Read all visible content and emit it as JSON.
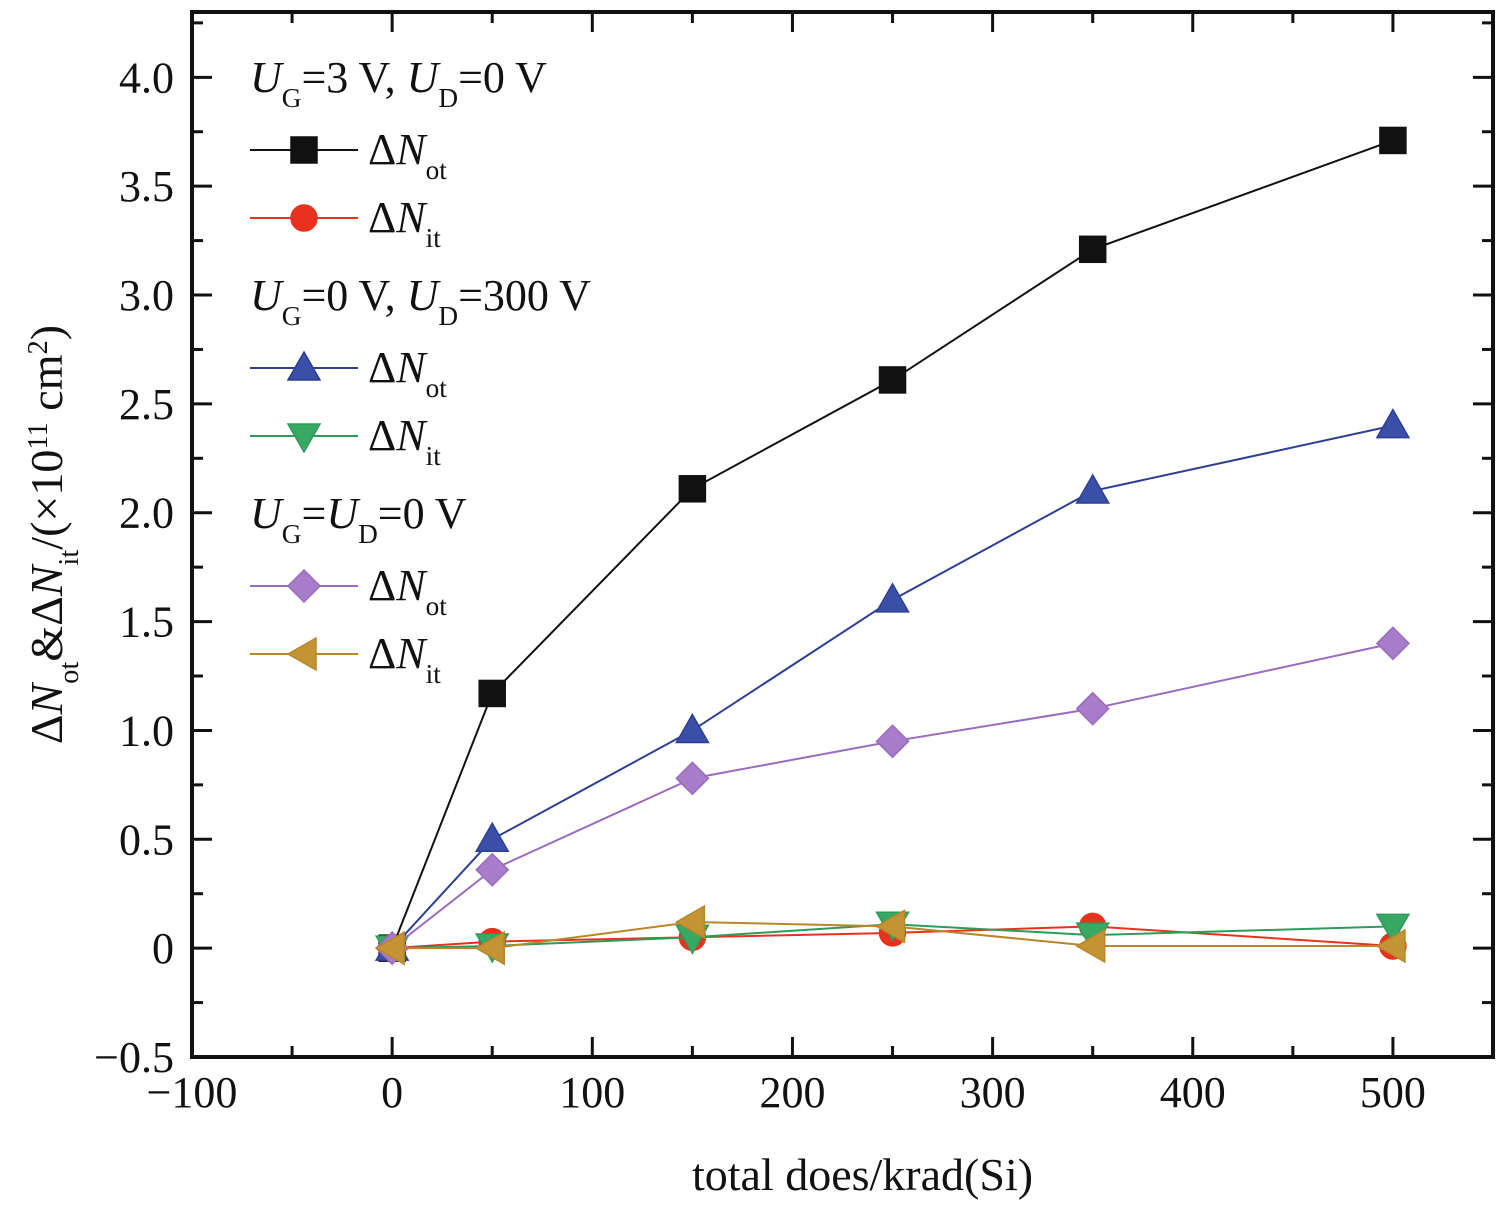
{
  "chart_data": {
    "type": "line",
    "xlabel": "total does/krad(Si)",
    "ylabel": {
      "parts": [
        {
          "t": "Δ",
          "style": "normal"
        },
        {
          "t": "N",
          "style": "italic"
        },
        {
          "t": "ot",
          "style": "sub"
        },
        {
          "t": "&Δ",
          "style": "normal"
        },
        {
          "t": "N",
          "style": "italic"
        },
        {
          "t": "it",
          "style": "sub"
        },
        {
          "t": "/(×10",
          "style": "normal"
        },
        {
          "t": "11",
          "style": "sup"
        },
        {
          "t": " cm",
          "style": "normal"
        },
        {
          "t": "2",
          "style": "sup"
        },
        {
          "t": ")",
          "style": "normal"
        }
      ]
    },
    "xlim": [
      -100,
      550
    ],
    "ylim": [
      -0.5,
      4.3
    ],
    "xticks": [
      -100,
      0,
      100,
      200,
      300,
      400,
      500
    ],
    "xtick_labels": [
      "−100",
      "0",
      "100",
      "200",
      "300",
      "400",
      "500"
    ],
    "yticks": [
      -0.5,
      0,
      0.5,
      1.0,
      1.5,
      2.0,
      2.5,
      3.0,
      3.5,
      4.0
    ],
    "ytick_labels": [
      "−0.5",
      "0",
      "0.5",
      "1.0",
      "1.5",
      "2.0",
      "2.5",
      "3.0",
      "3.5",
      "4.0"
    ],
    "legend_position": "top-left",
    "legend_groups": [
      {
        "parts": [
          {
            "t": "U",
            "style": "italic"
          },
          {
            "t": "G",
            "style": "sub"
          },
          {
            "t": "=3 V, ",
            "style": "normal"
          },
          {
            "t": "U",
            "style": "italic"
          },
          {
            "t": "D",
            "style": "sub"
          },
          {
            "t": "=0 V",
            "style": "normal"
          }
        ],
        "series_indices": [
          0,
          1
        ]
      },
      {
        "parts": [
          {
            "t": "U",
            "style": "italic"
          },
          {
            "t": "G",
            "style": "sub"
          },
          {
            "t": "=0 V, ",
            "style": "normal"
          },
          {
            "t": "U",
            "style": "italic"
          },
          {
            "t": "D",
            "style": "sub"
          },
          {
            "t": "=300 V",
            "style": "normal"
          }
        ],
        "series_indices": [
          2,
          3
        ]
      },
      {
        "parts": [
          {
            "t": "U",
            "style": "italic"
          },
          {
            "t": "G",
            "style": "sub"
          },
          {
            "t": "=",
            "style": "normal"
          },
          {
            "t": "U",
            "style": "italic"
          },
          {
            "t": "D",
            "style": "sub"
          },
          {
            "t": "=0 V",
            "style": "normal"
          }
        ],
        "series_indices": [
          4,
          5
        ]
      }
    ],
    "series": [
      {
        "name": "ΔNot",
        "label_parts": [
          {
            "t": "Δ",
            "style": "normal"
          },
          {
            "t": "N",
            "style": "italic"
          },
          {
            "t": "ot",
            "style": "sub"
          }
        ],
        "marker": "square",
        "color": "#111111",
        "fill": "#111111",
        "x": [
          0,
          50,
          150,
          250,
          350,
          500
        ],
        "y": [
          0,
          1.17,
          2.11,
          2.61,
          3.21,
          3.71
        ]
      },
      {
        "name": "ΔNit",
        "label_parts": [
          {
            "t": "Δ",
            "style": "normal"
          },
          {
            "t": "N",
            "style": "italic"
          },
          {
            "t": "it",
            "style": "sub"
          }
        ],
        "marker": "circle",
        "color": "#e8321e",
        "fill": "#e8321e",
        "x": [
          0,
          50,
          150,
          250,
          350,
          500
        ],
        "y": [
          0,
          0.03,
          0.05,
          0.07,
          0.1,
          0.01
        ]
      },
      {
        "name": "ΔNot",
        "label_parts": [
          {
            "t": "Δ",
            "style": "normal"
          },
          {
            "t": "N",
            "style": "italic"
          },
          {
            "t": "ot",
            "style": "sub"
          }
        ],
        "marker": "triangle-up",
        "color": "#2d3f94",
        "fill": "#3a4fa8",
        "x": [
          0,
          50,
          150,
          250,
          350,
          500
        ],
        "y": [
          0,
          0.5,
          1.0,
          1.6,
          2.1,
          2.4
        ]
      },
      {
        "name": "ΔNit",
        "label_parts": [
          {
            "t": "Δ",
            "style": "normal"
          },
          {
            "t": "N",
            "style": "italic"
          },
          {
            "t": "it",
            "style": "sub"
          }
        ],
        "marker": "triangle-down",
        "color": "#2e9b5a",
        "fill": "#3aa865",
        "x": [
          0,
          50,
          150,
          250,
          350,
          500
        ],
        "y": [
          0,
          0.01,
          0.05,
          0.11,
          0.06,
          0.1
        ]
      },
      {
        "name": "ΔNot",
        "label_parts": [
          {
            "t": "Δ",
            "style": "normal"
          },
          {
            "t": "N",
            "style": "italic"
          },
          {
            "t": "ot",
            "style": "sub"
          }
        ],
        "marker": "diamond",
        "color": "#9b6bbd",
        "fill": "#a77cc8",
        "x": [
          0,
          50,
          150,
          250,
          350,
          500
        ],
        "y": [
          0,
          0.36,
          0.78,
          0.95,
          1.1,
          1.4
        ]
      },
      {
        "name": "ΔNit",
        "label_parts": [
          {
            "t": "Δ",
            "style": "normal"
          },
          {
            "t": "N",
            "style": "italic"
          },
          {
            "t": "it",
            "style": "sub"
          }
        ],
        "marker": "triangle-left",
        "color": "#b8862b",
        "fill": "#c49434",
        "x": [
          0,
          50,
          150,
          250,
          350,
          500
        ],
        "y": [
          0,
          0.0,
          0.12,
          0.1,
          0.01,
          0.01
        ]
      }
    ]
  }
}
